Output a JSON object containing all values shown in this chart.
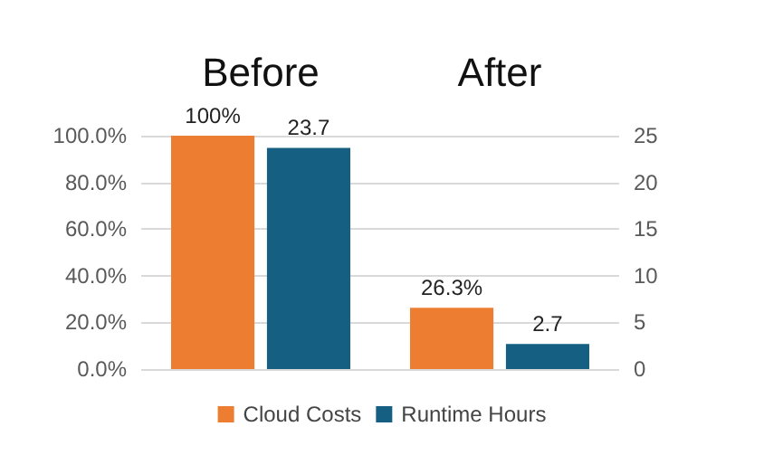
{
  "chart_data": {
    "type": "bar",
    "categories": [
      "Before",
      "After"
    ],
    "series": [
      {
        "name": "Cloud Costs",
        "color": "#ed7d31",
        "values": [
          100,
          26.3
        ],
        "value_labels": [
          "100%",
          "26.3%"
        ]
      },
      {
        "name": "Runtime Hours",
        "color": "#156082",
        "values": [
          23.7,
          2.7
        ],
        "value_labels": [
          "23.7",
          "2.7"
        ],
        "axis": "y2"
      }
    ],
    "ylim": [
      0,
      100
    ],
    "yticks": [
      {
        "value": 0,
        "label": "0.0%"
      },
      {
        "value": 20,
        "label": "20.0%"
      },
      {
        "value": 40,
        "label": "40.0%"
      },
      {
        "value": 60,
        "label": "60.0%"
      },
      {
        "value": 80,
        "label": "80.0%"
      },
      {
        "value": 100,
        "label": "100.0%"
      }
    ],
    "y2lim": [
      0,
      25
    ],
    "y2ticks": [
      0,
      5,
      10,
      15,
      20,
      25
    ],
    "grid": "y",
    "legend": "bottom"
  }
}
